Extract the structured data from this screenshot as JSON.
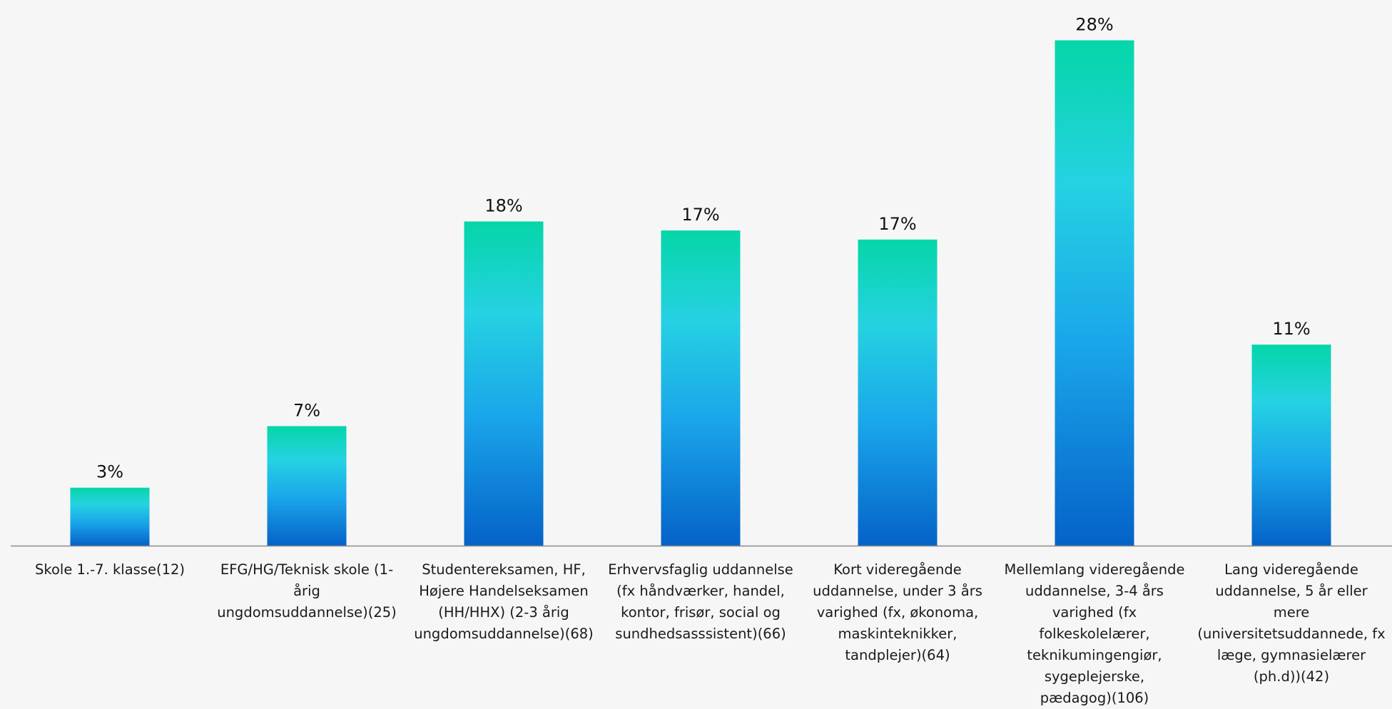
{
  "colors": {
    "bar_top": "#05d6a8",
    "bar_mid": "#25d2e2",
    "bar_upper_mid": "#1aa6ea",
    "bar_bottom": "#0562c8",
    "axis": "#8a8a8a",
    "background": "#f6f6f6"
  },
  "chart_data": {
    "type": "bar",
    "title": "",
    "xlabel": "",
    "ylabel": "",
    "ylim": [
      0,
      28
    ],
    "grid": false,
    "categories": [
      "Skole 1.-7. klasse(12)",
      "EFG/HG/Teknisk skole (1-\nårig\nungdomsuddannelse)(25)",
      "Studentereksamen, HF,\nHøjere Handelseksamen\n(HH/HHX) (2-3 årig\nungdomsuddannelse)(68)",
      "Erhvervsfaglig uddannelse\n(fx håndværker, handel,\nkontor, frisør, social og\nsundhedsasssistent)(66)",
      "Kort videregående\nuddannelse, under 3 års\nvarighed (fx, økonoma,\nmaskinteknikker,\ntandplejer)(64)",
      "Mellemlang videregående\nuddannelse, 3-4 års\nvarighed (fx\nfolkeskolelærer,\nteknikumingengiør,\nsygeplejerske,\npædagog)(106)",
      "Lang videregående\nuddannelse, 5 år eller\nmere\n(universitetsuddannede, fx\nlæge, gymnasielærer\n(ph.d))(42)"
    ],
    "values": [
      3.2,
      6.6,
      17.9,
      17.4,
      16.9,
      27.9,
      11.1
    ],
    "data_labels": [
      "3%",
      "7%",
      "18%",
      "17%",
      "17%",
      "28%",
      "11%"
    ]
  }
}
